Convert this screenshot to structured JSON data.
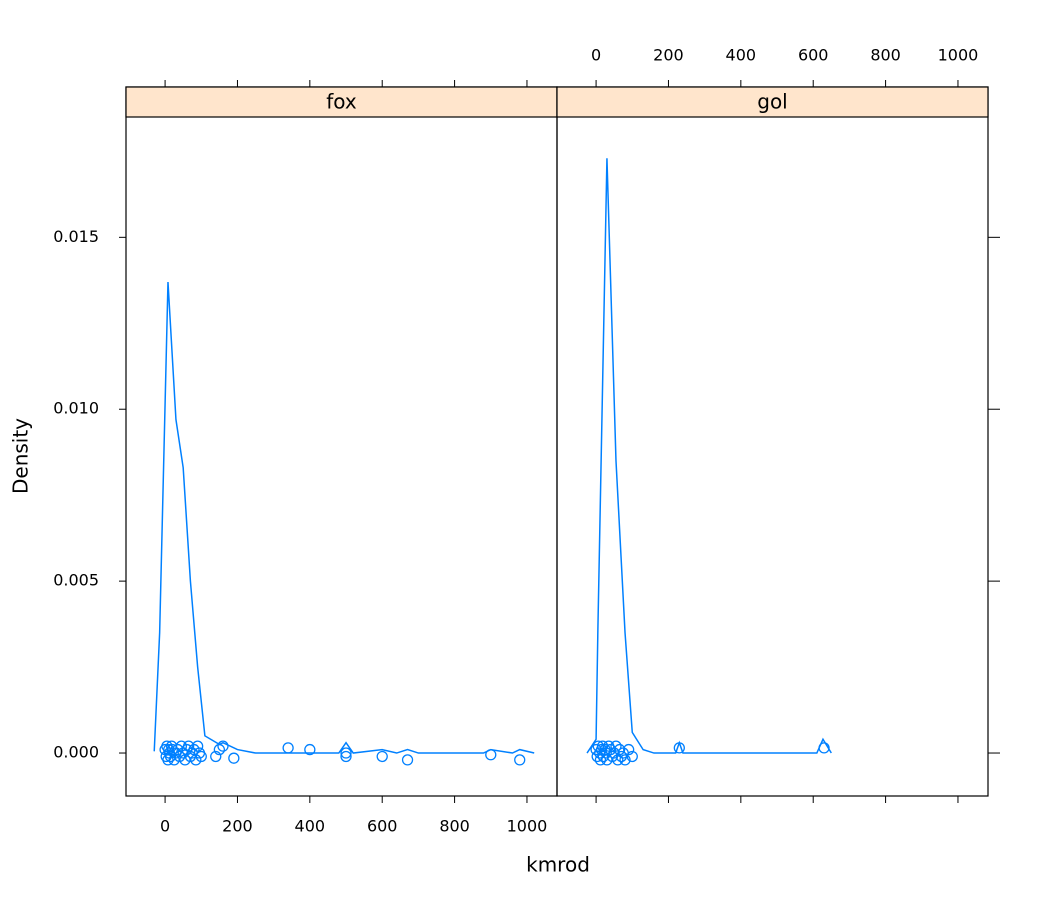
{
  "chart_data": {
    "type": "density",
    "xlabel": "kmrod",
    "ylabel": "Density",
    "color": "#0080ff",
    "strip_color": "#ffe5cc",
    "xlim": [
      -108,
      1083
    ],
    "ylim": [
      -0.00125,
      0.0185
    ],
    "xticks": [
      0,
      200,
      400,
      600,
      800,
      1000
    ],
    "yticks": [
      {
        "value": 0,
        "label": "0.000"
      },
      {
        "value": 0.005,
        "label": "0.005"
      },
      {
        "value": 0.01,
        "label": "0.010"
      },
      {
        "value": 0.015,
        "label": "0.015"
      }
    ],
    "panels": [
      {
        "name": "fox",
        "x": [
          -30,
          -15,
          8,
          30,
          50,
          70,
          90,
          110,
          150,
          160,
          200,
          250,
          350,
          480,
          500,
          520,
          600,
          640,
          670,
          700,
          880,
          900,
          960,
          980,
          1020
        ],
        "values": [
          5e-05,
          0.0035,
          0.0137,
          0.0097,
          0.0083,
          0.005,
          0.0025,
          0.0005,
          0.00025,
          0.0003,
          0.0001,
          0,
          0,
          0,
          0.0003,
          0,
          0.0001,
          0,
          0.0001,
          0,
          0,
          0.0001,
          0,
          0.0001,
          0
        ],
        "points_x": [
          0,
          3,
          5,
          8,
          10,
          12,
          15,
          18,
          20,
          25,
          30,
          35,
          40,
          45,
          50,
          55,
          60,
          65,
          70,
          75,
          80,
          85,
          90,
          95,
          100,
          140,
          150,
          160,
          190,
          340,
          400,
          500,
          500,
          600,
          670,
          900,
          980
        ],
        "points_y": [
          0.0001,
          -0.0001,
          0.0002,
          -0.0002,
          0.0001,
          0.0,
          -0.0001,
          0.0002,
          0.0001,
          -0.0002,
          0.0,
          0.0001,
          -0.0001,
          0.0002,
          0.0,
          -0.0002,
          0.0001,
          0.0002,
          -0.0001,
          0.0,
          0.0001,
          -0.0002,
          0.0002,
          0.0,
          -0.0001,
          -0.0001,
          0.0001,
          0.0002,
          -0.00015,
          0.00015,
          0.0001,
          0.0,
          -0.0001,
          -0.0001,
          -0.0002,
          -5e-05,
          -0.0002
        ]
      },
      {
        "name": "gol",
        "x": [
          -25,
          0,
          5,
          30,
          55,
          80,
          100,
          130,
          160,
          220,
          230,
          240,
          610,
          627,
          650
        ],
        "values": [
          0,
          0.0004,
          0.0036,
          0.0173,
          0.0085,
          0.0035,
          0.0006,
          0.0001,
          0,
          0,
          0.0003,
          0,
          0,
          0.0004,
          0
        ],
        "points_x": [
          0,
          3,
          6,
          10,
          12,
          15,
          18,
          20,
          25,
          28,
          30,
          35,
          40,
          45,
          50,
          55,
          60,
          65,
          70,
          75,
          80,
          90,
          100,
          230,
          630
        ],
        "points_y": [
          0.0001,
          -0.0001,
          0.0002,
          0.0,
          -0.0002,
          0.0001,
          0.0002,
          -0.0001,
          0.0001,
          0.0,
          -0.0002,
          0.0002,
          0.0001,
          -0.0001,
          0.0,
          0.0002,
          -0.0002,
          0.0001,
          -0.0001,
          0.0,
          -0.0002,
          0.0001,
          -0.0001,
          0.00015,
          0.00015
        ]
      }
    ]
  }
}
